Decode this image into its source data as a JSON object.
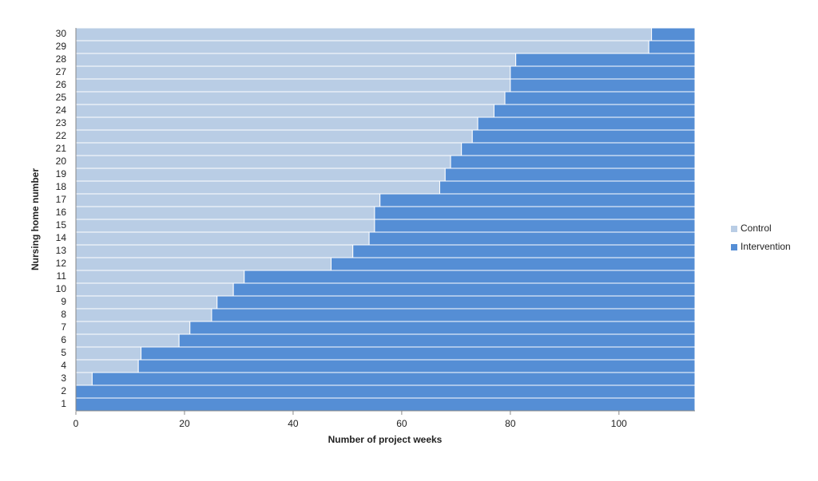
{
  "chart_data": {
    "type": "stacked-barh",
    "xlabel": "Number of project weeks",
    "ylabel": "Nursing home number",
    "categories": [
      "1",
      "2",
      "3",
      "4",
      "5",
      "6",
      "7",
      "8",
      "9",
      "10",
      "11",
      "12",
      "13",
      "14",
      "15",
      "16",
      "17",
      "18",
      "19",
      "20",
      "21",
      "22",
      "23",
      "24",
      "25",
      "26",
      "27",
      "28",
      "29",
      "30"
    ],
    "series": [
      {
        "name": "Control",
        "color": "#b9cde5",
        "values": [
          0,
          0,
          3,
          11.5,
          12,
          19,
          21,
          25,
          26,
          29,
          31,
          47,
          51,
          54,
          55,
          55,
          56,
          67,
          68,
          69,
          71,
          73,
          74,
          77,
          79,
          80,
          80,
          81,
          105.5,
          106
        ]
      },
      {
        "name": "Intervention",
        "color": "#558ed5",
        "values": [
          114,
          114,
          111,
          102.5,
          102,
          95,
          93,
          89,
          88,
          85,
          83,
          67,
          63,
          60,
          59,
          59,
          58,
          47,
          46,
          45,
          43,
          41,
          40,
          37,
          35,
          34,
          34,
          33,
          8.5,
          8
        ]
      }
    ],
    "xlim": [
      0,
      114
    ],
    "xticks": [
      0,
      20,
      40,
      60,
      80,
      100
    ],
    "legend": "right"
  }
}
